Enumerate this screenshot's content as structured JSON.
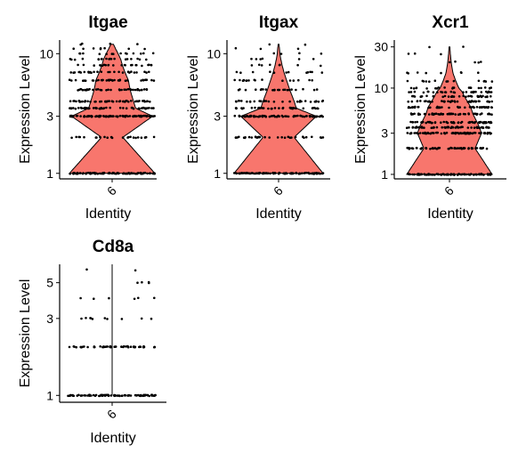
{
  "colors": {
    "violin_fill": "#F8766D",
    "outline": "#000000",
    "point": "#000000"
  },
  "chart_data": [
    {
      "type": "violin",
      "title": "Itgae",
      "xlabel": "Identity",
      "ylabel": "Expression Level",
      "categories": [
        "6"
      ],
      "y_scale": "log",
      "yticks": [
        1,
        3,
        10
      ],
      "ylim": [
        0.93,
        13
      ],
      "levels": [
        1,
        2,
        3,
        3.5,
        4,
        5,
        6,
        7,
        8,
        9,
        10,
        11,
        12
      ],
      "density": [
        1.0,
        0.25,
        0.95,
        0.55,
        0.5,
        0.42,
        0.38,
        0.3,
        0.24,
        0.2,
        0.14,
        0.08,
        0.03
      ],
      "has_violin": true
    },
    {
      "type": "violin",
      "title": "Itgax",
      "xlabel": "Identity",
      "ylabel": "Expression Level",
      "categories": [
        "6"
      ],
      "y_scale": "log",
      "yticks": [
        1,
        3,
        10
      ],
      "ylim": [
        0.93,
        13
      ],
      "levels": [
        1,
        2,
        3,
        3.5,
        4,
        5,
        6,
        7,
        8,
        9,
        10,
        11,
        12
      ],
      "density": [
        1.0,
        0.35,
        0.85,
        0.4,
        0.35,
        0.25,
        0.18,
        0.12,
        0.08,
        0.05,
        0.03,
        0.02,
        0.01
      ],
      "has_violin": true
    },
    {
      "type": "violin",
      "title": "Xcr1",
      "xlabel": "Identity",
      "ylabel": "Expression Level",
      "categories": [
        "6"
      ],
      "y_scale": "log",
      "yticks": [
        1,
        3,
        10,
        30
      ],
      "ylim": [
        0.93,
        36
      ],
      "levels": [
        1,
        2,
        3,
        3.5,
        4,
        5,
        6,
        7,
        8,
        9,
        10,
        12,
        15,
        20,
        25,
        30
      ],
      "density": [
        1.0,
        0.6,
        0.75,
        0.7,
        0.65,
        0.55,
        0.5,
        0.42,
        0.35,
        0.3,
        0.22,
        0.15,
        0.08,
        0.04,
        0.02,
        0.01
      ],
      "has_violin": true
    },
    {
      "type": "violin",
      "title": "Cd8a",
      "xlabel": "Identity",
      "ylabel": "Expression Level",
      "categories": [
        "6"
      ],
      "y_scale": "log",
      "yticks": [
        1,
        3,
        5
      ],
      "ylim": [
        0.93,
        6.5
      ],
      "levels": [
        1,
        2,
        3,
        4,
        5,
        6
      ],
      "density": [
        1.0,
        0.55,
        0.1,
        0.06,
        0.03,
        0.01
      ],
      "has_violin": false
    }
  ]
}
